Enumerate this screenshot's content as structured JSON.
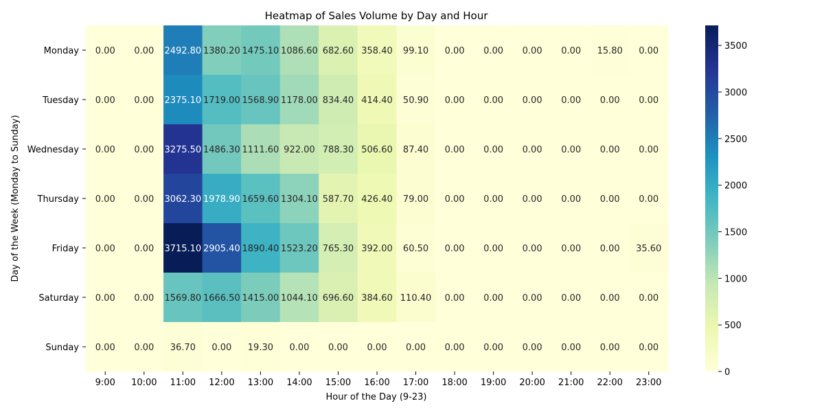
{
  "chart_data": {
    "type": "heatmap",
    "title": "Heatmap of Sales Volume by Day and Hour",
    "xlabel": "Hour of the Day (9-23)",
    "ylabel": "Day of the Week (Monday to Sunday)",
    "x_categories": [
      "9:00",
      "10:00",
      "11:00",
      "12:00",
      "13:00",
      "14:00",
      "15:00",
      "16:00",
      "17:00",
      "18:00",
      "19:00",
      "20:00",
      "21:00",
      "22:00",
      "23:00"
    ],
    "y_categories": [
      "Monday",
      "Tuesday",
      "Wednesday",
      "Thursday",
      "Friday",
      "Saturday",
      "Sunday"
    ],
    "values": [
      [
        0,
        0,
        2492.8,
        1380.2,
        1475.1,
        1086.6,
        682.6,
        358.4,
        99.1,
        0,
        0,
        0,
        0,
        15.8,
        0
      ],
      [
        0,
        0,
        2375.1,
        1719.0,
        1568.9,
        1178.0,
        834.4,
        414.4,
        50.9,
        0,
        0,
        0,
        0,
        0,
        0
      ],
      [
        0,
        0,
        3275.5,
        1486.3,
        1111.6,
        922.0,
        788.3,
        506.6,
        87.4,
        0,
        0,
        0,
        0,
        0,
        0
      ],
      [
        0,
        0,
        3062.3,
        1978.9,
        1659.6,
        1304.1,
        587.7,
        426.4,
        79.0,
        0,
        0,
        0,
        0,
        0,
        0
      ],
      [
        0,
        0,
        3715.1,
        2905.4,
        1890.4,
        1523.2,
        765.3,
        392.0,
        60.5,
        0,
        0,
        0,
        0,
        0,
        35.6
      ],
      [
        0,
        0,
        1569.8,
        1666.5,
        1415.0,
        1044.1,
        696.6,
        384.6,
        110.4,
        0,
        0,
        0,
        0,
        0,
        0
      ],
      [
        0,
        0,
        36.7,
        0,
        19.3,
        0,
        0,
        0,
        0,
        0,
        0,
        0,
        0,
        0,
        0
      ]
    ],
    "value_format": "2 decimals",
    "colormap": "YlGnBu",
    "colorbar": {
      "min": 0,
      "max": 3715.1,
      "ticks": [
        0,
        500,
        1000,
        1500,
        2000,
        2500,
        3000,
        3500
      ]
    },
    "legend": "colorbar right"
  }
}
